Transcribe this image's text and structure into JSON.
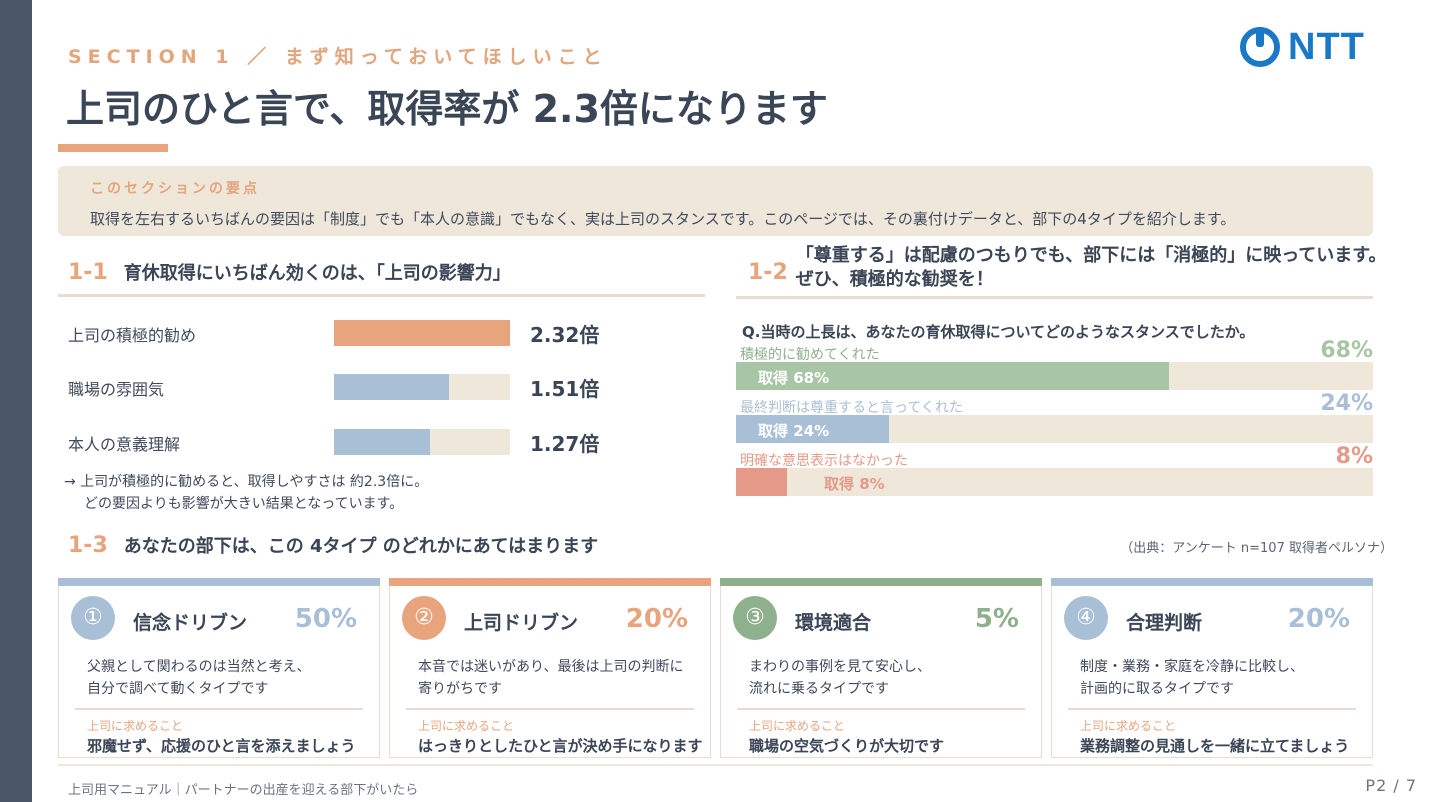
{
  "header": {
    "section_label": "SECTION 1 ／ まず知っておいてほしいこと",
    "logo_text": "NTT",
    "title": "上司のひと言で、取得率が 2.3倍になります"
  },
  "summary": {
    "label": "このセクションの要点",
    "text": "取得を左右するいちばんの要因は「制度」でも「本人の意識」でもなく、実は上司のスタンスです。このページでは、その裏付けデータと、部下の4タイプを紹介します。"
  },
  "section_1_1": {
    "num": "1-1",
    "title": "育休取得にいちばん効くのは、「上司の影響力」",
    "note_line1": "→ 上司が積極的に勧めると、取得しやすさは 約2.3倍に。",
    "note_line2": "どの要因よりも影響が大きい結果となっています。"
  },
  "section_1_2": {
    "num": "1-2",
    "title_line1": "「尊重する」は配慮のつもりでも、部下には「消極的」に映っています。",
    "title_line2": "ぜひ、積極的な勧奨を！",
    "question": "Q.当時の上長は、あなたの育休取得についてどのようなスタンスでしたか。"
  },
  "section_1_3": {
    "num": "1-3",
    "title": "あなたの部下は、この 4タイプ のどれかにあてはまります",
    "source": "（出典：アンケート n=107 取得者ペルソナ）"
  },
  "chart_data": [
    {
      "type": "bar",
      "orientation": "horizontal",
      "categories": [
        "上司の積極的勧め",
        "職場の雰囲気",
        "本人の意義理解"
      ],
      "values": [
        2.32,
        1.51,
        1.27
      ],
      "value_labels": [
        "2.32倍",
        "1.51倍",
        "1.27倍"
      ],
      "xlim": [
        0,
        2.32
      ],
      "colors": [
        "#e8a57d",
        "#a9bfd6",
        "#a9bfd6"
      ]
    },
    {
      "type": "bar",
      "orientation": "horizontal",
      "categories": [
        "積極的に勧めてくれた",
        "最終判断は尊重すると言ってくれた",
        "明確な意思表示はなかった"
      ],
      "values": [
        68,
        24,
        8
      ],
      "pct_labels": [
        "68%",
        "24%",
        "8%"
      ],
      "bar_labels": [
        "取得 68%",
        "取得 24%",
        "取得 8%"
      ],
      "xlim": [
        0,
        100
      ],
      "colors": [
        "#a8c6a5",
        "#a9bfd6",
        "#e59a89"
      ]
    }
  ],
  "cards": [
    {
      "num": "①",
      "name": "信念ドリブン",
      "pct": "50%",
      "desc1": "父親として関わるのは当然と考え、",
      "desc2": "自分で調べて動くタイプです",
      "ask_label": "上司に求めること",
      "ask": "邪魔せず、応援のひと言を添えましょう",
      "color": "#a9bfd6"
    },
    {
      "num": "②",
      "name": "上司ドリブン",
      "pct": "20%",
      "desc1": "本音では迷いがあり、最後は上司の判断に",
      "desc2": "寄りがちです",
      "ask_label": "上司に求めること",
      "ask": "はっきりとしたひと言が決め手になります",
      "color": "#e8a57d"
    },
    {
      "num": "③",
      "name": "環境適合",
      "pct": "5%",
      "desc1": "まわりの事例を見て安心し、",
      "desc2": "流れに乗るタイプです",
      "ask_label": "上司に求めること",
      "ask": "職場の空気づくりが大切です",
      "color": "#8fb08d"
    },
    {
      "num": "④",
      "name": "合理判断",
      "pct": "20%",
      "desc1": "制度・業務・家庭を冷静に比較し、",
      "desc2": "計画的に取るタイプです",
      "ask_label": "上司に求めること",
      "ask": "業務調整の見通しを一緒に立てましょう",
      "color": "#a9bfd6"
    }
  ],
  "footer": {
    "text": "上司用マニュアル｜パートナーの出産を迎える部下がいたら",
    "page": "P2 / 7"
  }
}
